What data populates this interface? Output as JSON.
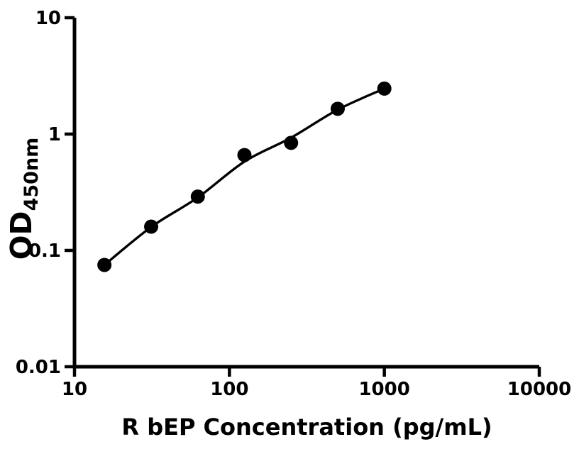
{
  "figure": {
    "background_color": "#ffffff",
    "foreground_color": "#000000"
  },
  "chart_data": {
    "type": "scatter",
    "xlabel": "R bEP Concentration (pg/mL)",
    "ylabel": "OD",
    "ylabel_subscript": "450nm",
    "x_scale": "log10",
    "y_scale": "log10",
    "xlim": [
      10,
      10000
    ],
    "ylim": [
      0.01,
      10
    ],
    "grid": false,
    "legend": "none",
    "x_ticks": [
      {
        "value": 10,
        "label": "10"
      },
      {
        "value": 100,
        "label": "100"
      },
      {
        "value": 1000,
        "label": "1000"
      },
      {
        "value": 10000,
        "label": "10000"
      }
    ],
    "y_ticks": [
      {
        "value": 10,
        "label": "10"
      },
      {
        "value": 1,
        "label": "1"
      },
      {
        "value": 0.1,
        "label": "0.1"
      },
      {
        "value": 0.01,
        "label": "0.01"
      }
    ],
    "series": [
      {
        "name": "standard-points",
        "type": "scatter",
        "marker": "filled-circle",
        "color": "#000000",
        "points": [
          {
            "x": 15.6,
            "y": 0.075
          },
          {
            "x": 31.25,
            "y": 0.16
          },
          {
            "x": 62.5,
            "y": 0.29
          },
          {
            "x": 125,
            "y": 0.66
          },
          {
            "x": 250,
            "y": 0.84
          },
          {
            "x": 500,
            "y": 1.65
          },
          {
            "x": 1000,
            "y": 2.46
          }
        ]
      },
      {
        "name": "fit-curve",
        "type": "line",
        "color": "#000000",
        "points": [
          {
            "x": 15.6,
            "y": 0.075
          },
          {
            "x": 31.25,
            "y": 0.159
          },
          {
            "x": 62.5,
            "y": 0.285
          },
          {
            "x": 125,
            "y": 0.58
          },
          {
            "x": 250,
            "y": 0.93
          },
          {
            "x": 500,
            "y": 1.62
          },
          {
            "x": 1000,
            "y": 2.46
          }
        ]
      }
    ]
  }
}
